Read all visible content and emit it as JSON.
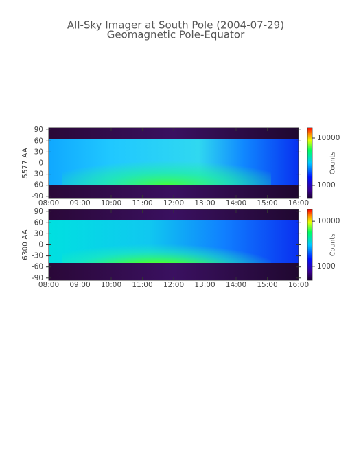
{
  "chart_data": [
    {
      "type": "heatmap",
      "title": "All-Sky Imager at South Pole (2004-07-29)",
      "subtitle": "Geomagnetic Pole-Equator",
      "ylabel": "5577 AA",
      "xlim": [
        8,
        16
      ],
      "xticks": [
        {
          "value": 8,
          "label": "08:00"
        },
        {
          "value": 9,
          "label": "09:00"
        },
        {
          "value": 10,
          "label": "10:00"
        },
        {
          "value": 11,
          "label": "11:00"
        },
        {
          "value": 12,
          "label": "12:00"
        },
        {
          "value": 13,
          "label": "13:00"
        },
        {
          "value": 14,
          "label": "14:00"
        },
        {
          "value": 15,
          "label": "15:00"
        },
        {
          "value": 16,
          "label": "16:00"
        }
      ],
      "ylim": [
        -96,
        96
      ],
      "yticks": [
        90,
        60,
        30,
        0,
        -30,
        -60,
        -90
      ],
      "colorbar": {
        "label": "Counts",
        "scale": "log",
        "clim": [
          530,
          16500
        ],
        "ticks": [
          1000,
          10000
        ]
      }
    },
    {
      "type": "heatmap",
      "ylabel": "6300 AA",
      "xlim": [
        8,
        16
      ],
      "xticks": [
        {
          "value": 8,
          "label": "08:00"
        },
        {
          "value": 9,
          "label": "09:00"
        },
        {
          "value": 10,
          "label": "10:00"
        },
        {
          "value": 11,
          "label": "11:00"
        },
        {
          "value": 12,
          "label": "12:00"
        },
        {
          "value": 13,
          "label": "13:00"
        },
        {
          "value": 14,
          "label": "14:00"
        },
        {
          "value": 15,
          "label": "15:00"
        },
        {
          "value": 16,
          "label": "16:00"
        }
      ],
      "ylim": [
        -96,
        96
      ],
      "yticks": [
        90,
        60,
        30,
        0,
        -30,
        -60,
        -90
      ],
      "colorbar": {
        "label": "Counts",
        "scale": "log",
        "clim": [
          493,
          18250
        ],
        "ticks": [
          1000,
          10000
        ]
      }
    }
  ]
}
